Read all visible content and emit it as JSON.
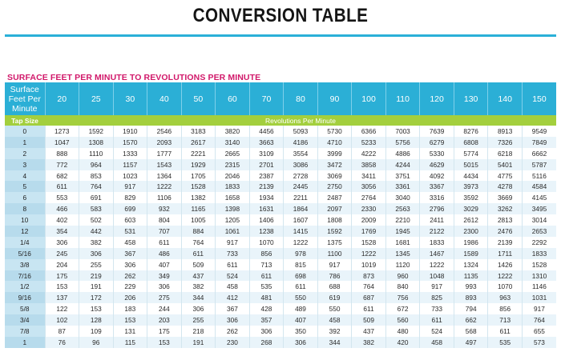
{
  "title": "CONVERSION TABLE",
  "subtitle": "SURFACE FEET PER MINUTE TO REVOLUTIONS PER MINUTE",
  "corner_header": [
    "Surface",
    "Feet Per",
    "Minute"
  ],
  "speeds": [
    "20",
    "25",
    "30",
    "40",
    "50",
    "60",
    "70",
    "80",
    "90",
    "100",
    "110",
    "120",
    "130",
    "140",
    "150"
  ],
  "tap_size_label": "Tap Size",
  "rpm_label": "Revolutions Per Minute",
  "rows": [
    {
      "tap": "0",
      "values": [
        "1273",
        "1592",
        "1910",
        "2546",
        "3183",
        "3820",
        "4456",
        "5093",
        "5730",
        "6366",
        "7003",
        "7639",
        "8276",
        "8913",
        "9549"
      ]
    },
    {
      "tap": "1",
      "values": [
        "1047",
        "1308",
        "1570",
        "2093",
        "2617",
        "3140",
        "3663",
        "4186",
        "4710",
        "5233",
        "5756",
        "6279",
        "6808",
        "7326",
        "7849"
      ]
    },
    {
      "tap": "2",
      "values": [
        "888",
        "1110",
        "1333",
        "1777",
        "2221",
        "2665",
        "3109",
        "3554",
        "3999",
        "4222",
        "4886",
        "5330",
        "5774",
        "6218",
        "6662"
      ]
    },
    {
      "tap": "3",
      "values": [
        "772",
        "964",
        "1157",
        "1543",
        "1929",
        "2315",
        "2701",
        "3086",
        "3472",
        "3858",
        "4244",
        "4629",
        "5015",
        "5401",
        "5787"
      ]
    },
    {
      "tap": "4",
      "values": [
        "682",
        "853",
        "1023",
        "1364",
        "1705",
        "2046",
        "2387",
        "2728",
        "3069",
        "3411",
        "3751",
        "4092",
        "4434",
        "4775",
        "5116"
      ]
    },
    {
      "tap": "5",
      "values": [
        "611",
        "764",
        "917",
        "1222",
        "1528",
        "1833",
        "2139",
        "2445",
        "2750",
        "3056",
        "3361",
        "3367",
        "3973",
        "4278",
        "4584"
      ]
    },
    {
      "tap": "6",
      "values": [
        "553",
        "691",
        "829",
        "1106",
        "1382",
        "1658",
        "1934",
        "2211",
        "2487",
        "2764",
        "3040",
        "3316",
        "3592",
        "3669",
        "4145"
      ]
    },
    {
      "tap": "8",
      "values": [
        "466",
        "583",
        "699",
        "932",
        "1165",
        "1398",
        "1631",
        "1864",
        "2097",
        "2330",
        "2563",
        "2796",
        "3029",
        "3262",
        "3495"
      ]
    },
    {
      "tap": "10",
      "values": [
        "402",
        "502",
        "603",
        "804",
        "1005",
        "1205",
        "1406",
        "1607",
        "1808",
        "2009",
        "2210",
        "2411",
        "2612",
        "2813",
        "3014"
      ]
    },
    {
      "tap": "12",
      "values": [
        "354",
        "442",
        "531",
        "707",
        "884",
        "1061",
        "1238",
        "1415",
        "1592",
        "1769",
        "1945",
        "2122",
        "2300",
        "2476",
        "2653"
      ]
    },
    {
      "tap": "1/4",
      "values": [
        "306",
        "382",
        "458",
        "611",
        "764",
        "917",
        "1070",
        "1222",
        "1375",
        "1528",
        "1681",
        "1833",
        "1986",
        "2139",
        "2292"
      ]
    },
    {
      "tap": "5/16",
      "values": [
        "245",
        "306",
        "367",
        "486",
        "611",
        "733",
        "856",
        "978",
        "1100",
        "1222",
        "1345",
        "1467",
        "1589",
        "1711",
        "1833"
      ]
    },
    {
      "tap": "3/8",
      "values": [
        "204",
        "255",
        "306",
        "407",
        "509",
        "611",
        "713",
        "815",
        "917",
        "1019",
        "1120",
        "1222",
        "1324",
        "1426",
        "1528"
      ]
    },
    {
      "tap": "7/16",
      "values": [
        "175",
        "219",
        "262",
        "349",
        "437",
        "524",
        "611",
        "698",
        "786",
        "873",
        "960",
        "1048",
        "1135",
        "1222",
        "1310"
      ]
    },
    {
      "tap": "1/2",
      "values": [
        "153",
        "191",
        "229",
        "306",
        "382",
        "458",
        "535",
        "611",
        "688",
        "764",
        "840",
        "917",
        "993",
        "1070",
        "1146"
      ]
    },
    {
      "tap": "9/16",
      "values": [
        "137",
        "172",
        "206",
        "275",
        "344",
        "412",
        "481",
        "550",
        "619",
        "687",
        "756",
        "825",
        "893",
        "963",
        "1031"
      ]
    },
    {
      "tap": "5/8",
      "values": [
        "122",
        "153",
        "183",
        "244",
        "306",
        "367",
        "428",
        "489",
        "550",
        "611",
        "672",
        "733",
        "794",
        "856",
        "917"
      ]
    },
    {
      "tap": "3/4",
      "values": [
        "102",
        "128",
        "153",
        "203",
        "255",
        "306",
        "357",
        "407",
        "458",
        "509",
        "560",
        "611",
        "662",
        "713",
        "764"
      ]
    },
    {
      "tap": "7/8",
      "values": [
        "87",
        "109",
        "131",
        "175",
        "218",
        "262",
        "306",
        "350",
        "392",
        "437",
        "480",
        "524",
        "568",
        "611",
        "655"
      ]
    },
    {
      "tap": "1",
      "values": [
        "76",
        "96",
        "115",
        "153",
        "191",
        "230",
        "268",
        "306",
        "344",
        "382",
        "420",
        "458",
        "497",
        "535",
        "573"
      ]
    }
  ]
}
